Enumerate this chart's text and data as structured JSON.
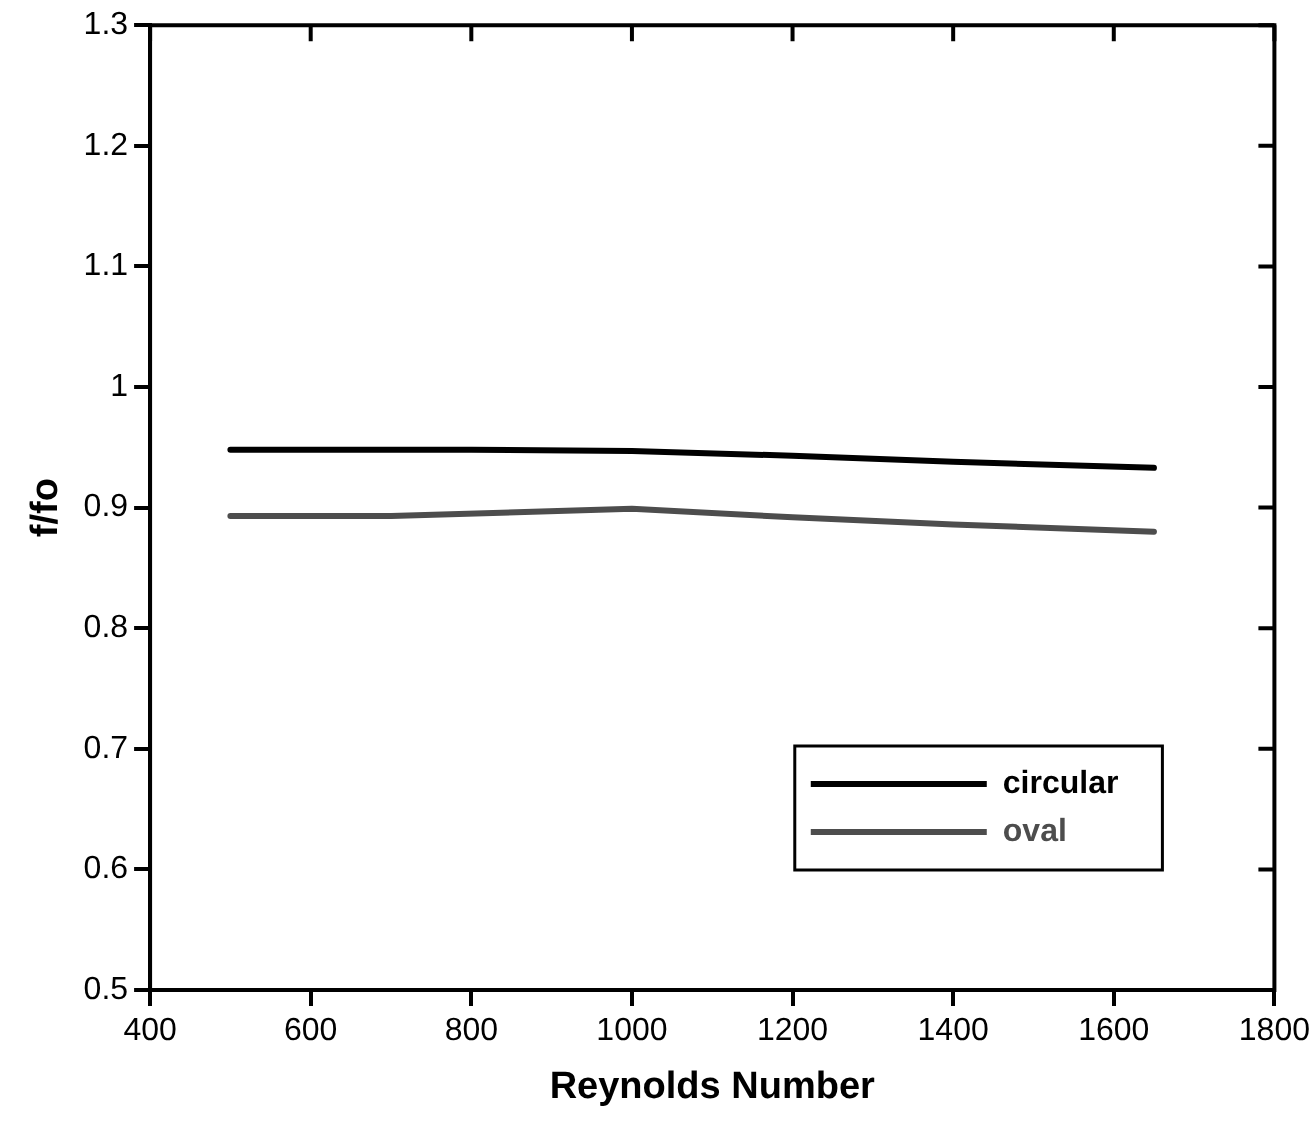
{
  "chart_data": {
    "type": "line",
    "xlabel": "Reynolds Number",
    "ylabel": "f/fo",
    "xlim": [
      400,
      1800
    ],
    "xticks": [
      400,
      600,
      800,
      1000,
      1200,
      1400,
      1600,
      1800
    ],
    "ylim": [
      0.5,
      1.3
    ],
    "yticks": [
      0.5,
      0.6,
      0.7,
      0.8,
      0.9,
      {
        "value": 1,
        "label": "1"
      },
      1.1,
      1.2,
      1.3
    ],
    "grid": false,
    "legend": "bottom right",
    "marker": "none",
    "line_style": "solid",
    "series": [
      {
        "name": "circular",
        "color": "#000000",
        "x": [
          500,
          800,
          1000,
          1200,
          1400,
          1650
        ],
        "values": [
          0.948,
          0.948,
          0.947,
          0.943,
          0.938,
          0.933
        ]
      },
      {
        "name": "oval",
        "color": "#4d4d4d",
        "x": [
          500,
          700,
          1000,
          1200,
          1400,
          1650
        ],
        "values": [
          0.893,
          0.893,
          0.899,
          0.892,
          0.886,
          0.88
        ]
      }
    ]
  }
}
